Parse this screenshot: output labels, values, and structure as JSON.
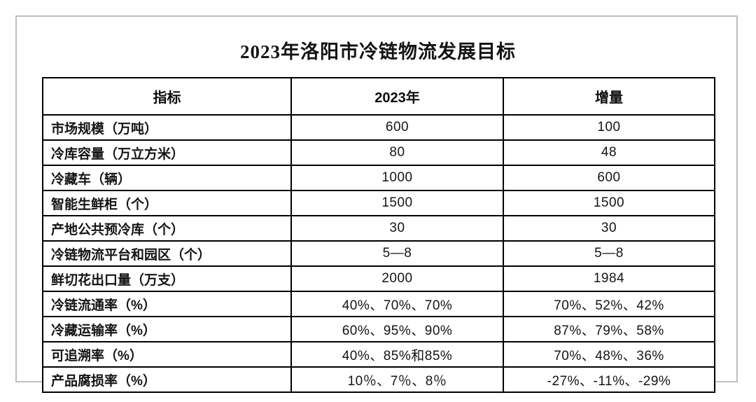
{
  "page": {
    "title": "2023年洛阳市冷链物流发展目标"
  },
  "table": {
    "headers": {
      "indicator": "指标",
      "year_2023": "2023年",
      "increment": "增量"
    },
    "rows": [
      {
        "indicator": "市场规模（万吨）",
        "value_2023": "600",
        "increment": "100"
      },
      {
        "indicator": "冷库容量（万立方米）",
        "value_2023": "80",
        "increment": "48"
      },
      {
        "indicator": "冷藏车（辆）",
        "value_2023": "1000",
        "increment": "600"
      },
      {
        "indicator": "智能生鲜柜（个）",
        "value_2023": "1500",
        "increment": "1500"
      },
      {
        "indicator": "产地公共预冷库（个）",
        "value_2023": "30",
        "increment": "30"
      },
      {
        "indicator": "冷链物流平台和园区（个）",
        "value_2023": "5—8",
        "increment": "5—8"
      },
      {
        "indicator": "鲜切花出口量（万支）",
        "value_2023": "2000",
        "increment": "1984"
      },
      {
        "indicator": "冷链流通率（%）",
        "value_2023": "40%、70%、70%",
        "increment": "70%、52%、42%"
      },
      {
        "indicator": "冷藏运输率（%）",
        "value_2023": "60%、95%、90%",
        "increment": "87%、79%、58%"
      },
      {
        "indicator": "可追溯率（%）",
        "value_2023": "40%、85%和85%",
        "increment": "70%、48%、36%"
      },
      {
        "indicator": "产品腐损率（%）",
        "value_2023": "10％、7％、8％",
        "increment": "-27%、-11%、-29%"
      }
    ]
  },
  "colors": {
    "table_border": "#000000",
    "page_frame": "#bdbdbd",
    "text": "#141414",
    "background": "#ffffff"
  }
}
